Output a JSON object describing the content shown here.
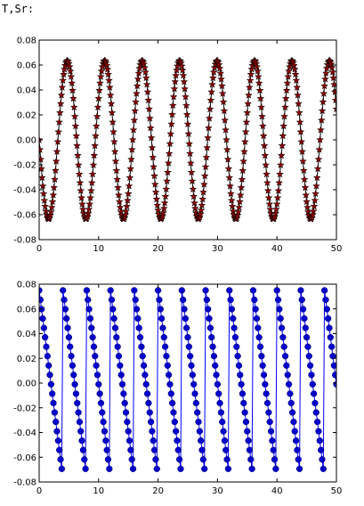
{
  "header": {
    "label": "T,Sr:"
  },
  "chart_data": [
    {
      "type": "line",
      "xlim": [
        0,
        50
      ],
      "ylim": [
        -0.08,
        0.08
      ],
      "xticks": [
        "0",
        "10",
        "20",
        "30",
        "40",
        "50"
      ],
      "yticks": [
        "0.08",
        "0.06",
        "0.04",
        "0.02",
        "0.00",
        "-0.02",
        "-0.04",
        "-0.06",
        "-0.08"
      ],
      "grid": false,
      "series": [
        {
          "style": "line with star markers",
          "line_color": "#000000",
          "marker": "star",
          "marker_color": "#8b0000",
          "function": "sine",
          "amplitude": 0.0635,
          "period": 6.3,
          "x_start": 0,
          "x_end": 50,
          "x_step": 0.125,
          "approx_points": [
            [
              0,
              0.0
            ],
            [
              1.6,
              -0.063
            ],
            [
              4.7,
              0.063
            ],
            [
              7.9,
              -0.063
            ],
            [
              11.0,
              0.063
            ],
            [
              14.1,
              -0.063
            ],
            [
              17.3,
              0.063
            ],
            [
              20.4,
              -0.063
            ],
            [
              23.6,
              0.063
            ],
            [
              26.7,
              -0.063
            ],
            [
              29.8,
              0.063
            ],
            [
              33.0,
              -0.063
            ],
            [
              36.1,
              0.063
            ],
            [
              39.3,
              -0.063
            ],
            [
              42.4,
              0.063
            ],
            [
              45.6,
              -0.063
            ],
            [
              48.7,
              0.063
            ],
            [
              50.0,
              0.025
            ]
          ]
        }
      ]
    },
    {
      "type": "line",
      "xlim": [
        0,
        50
      ],
      "ylim": [
        -0.08,
        0.08
      ],
      "xticks": [
        "0",
        "10",
        "20",
        "30",
        "40",
        "50"
      ],
      "yticks": [
        "0.08",
        "0.06",
        "0.04",
        "0.02",
        "0.00",
        "-0.02",
        "-0.04",
        "-0.06",
        "-0.08"
      ],
      "grid": false,
      "series": [
        {
          "style": "line with circle markers",
          "line_color": "#0000ff",
          "marker": "circle",
          "marker_color": "#0000cc",
          "function": "sawtooth (falling)",
          "max": 0.075,
          "min": -0.077,
          "period": 4.0,
          "x_start": 0,
          "x_end": 50,
          "x_step": 0.2,
          "approx_points": [
            [
              0,
              0.075
            ],
            [
              3.95,
              -0.077
            ],
            [
              4.0,
              0.075
            ],
            [
              7.95,
              -0.077
            ],
            [
              8.0,
              0.075
            ],
            [
              12.0,
              0.075
            ],
            [
              16.0,
              0.075
            ],
            [
              20.0,
              0.075
            ],
            [
              24.0,
              0.075
            ],
            [
              28.0,
              0.075
            ],
            [
              32.0,
              0.075
            ],
            [
              36.0,
              0.075
            ],
            [
              40.0,
              0.075
            ],
            [
              44.0,
              0.075
            ],
            [
              48.0,
              0.075
            ],
            [
              50.0,
              0.0
            ]
          ]
        }
      ]
    }
  ]
}
